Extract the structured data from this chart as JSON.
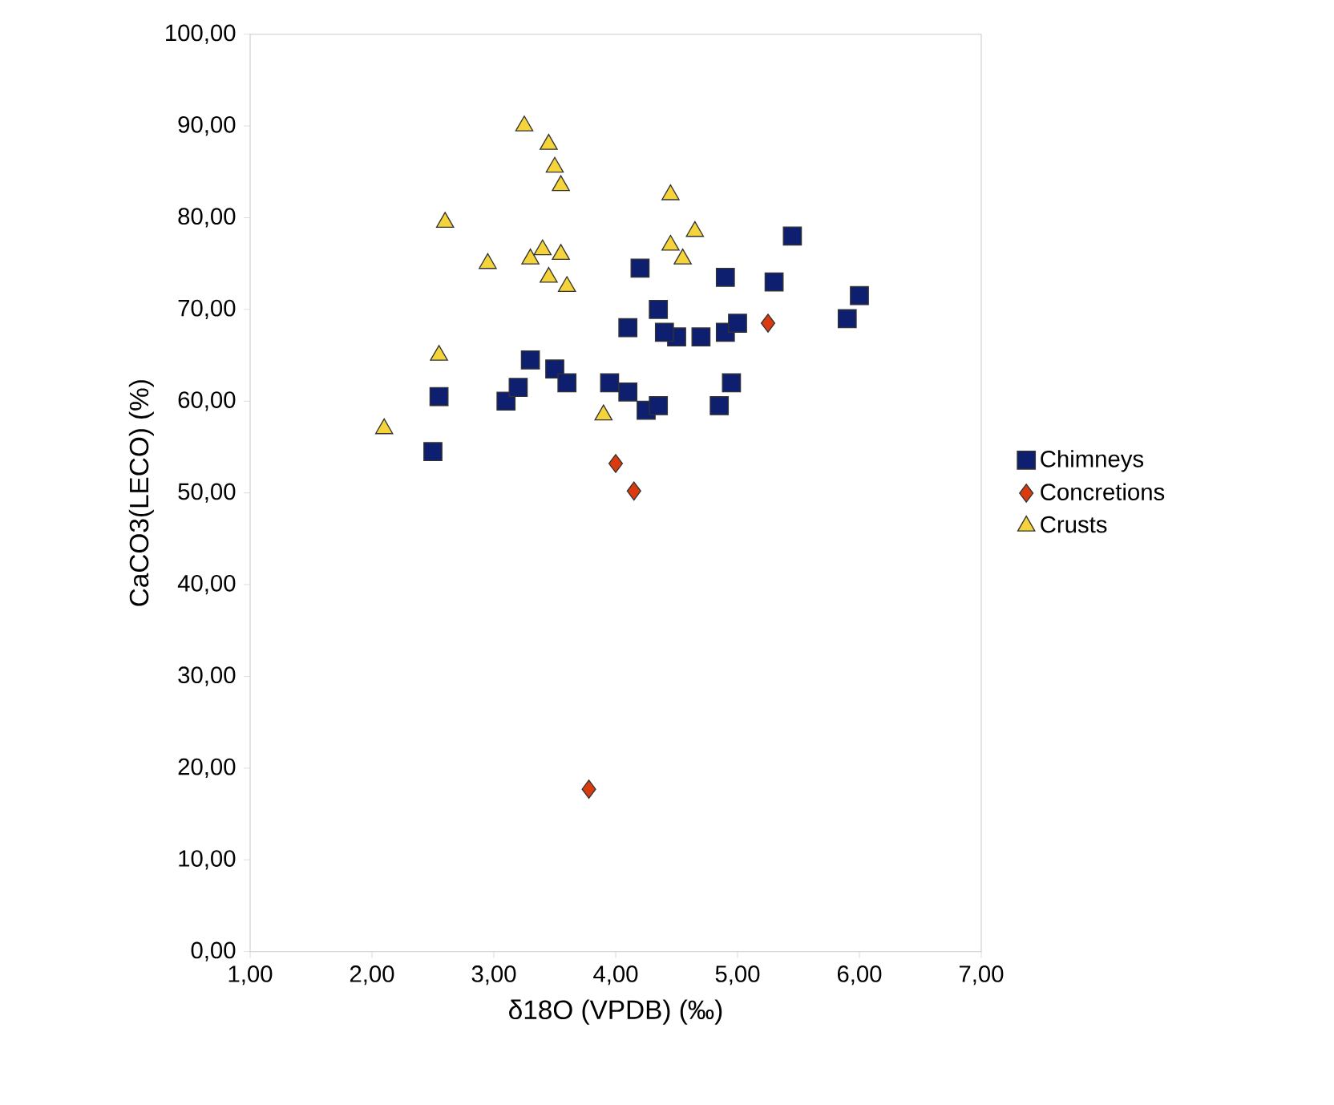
{
  "chart_data": {
    "type": "scatter",
    "xlabel": "δ18O (VPDB) (‰)",
    "ylabel": "CaCO3(LECO) (%)",
    "xlim": [
      1,
      7
    ],
    "ylim": [
      0,
      100
    ],
    "xticks": [
      {
        "value": 1,
        "label": "1,00"
      },
      {
        "value": 2,
        "label": "2,00"
      },
      {
        "value": 3,
        "label": "3,00"
      },
      {
        "value": 4,
        "label": "4,00"
      },
      {
        "value": 5,
        "label": "5,00"
      },
      {
        "value": 6,
        "label": "6,00"
      },
      {
        "value": 7,
        "label": "7,00"
      }
    ],
    "yticks": [
      {
        "value": 0,
        "label": "0,00"
      },
      {
        "value": 10,
        "label": "10,00"
      },
      {
        "value": 20,
        "label": "20,00"
      },
      {
        "value": 30,
        "label": "30,00"
      },
      {
        "value": 40,
        "label": "40,00"
      },
      {
        "value": 50,
        "label": "50,00"
      },
      {
        "value": 60,
        "label": "60,00"
      },
      {
        "value": 70,
        "label": "70,00"
      },
      {
        "value": 80,
        "label": "80,00"
      },
      {
        "value": 90,
        "label": "90,00"
      },
      {
        "value": 100,
        "label": "100,00"
      }
    ],
    "grid": false,
    "legend": "right",
    "series": [
      {
        "name": "Chimneys",
        "color": "#0d1f6e",
        "marker": "square",
        "x": [
          2.5,
          2.55,
          3.1,
          3.2,
          3.3,
          3.5,
          3.6,
          3.95,
          4.1,
          4.25,
          4.35,
          4.1,
          4.2,
          4.35,
          4.5,
          4.7,
          4.9,
          4.9,
          5.0,
          4.95,
          4.85,
          5.3,
          5.45,
          5.9,
          6.0,
          4.4
        ],
        "values": [
          54.5,
          60.5,
          60,
          61.5,
          64.5,
          63.5,
          62,
          62,
          61,
          59,
          59.5,
          68,
          74.5,
          70,
          67,
          67,
          67.5,
          73.5,
          68.5,
          62,
          59.5,
          73,
          78,
          69,
          71.5,
          67.5
        ]
      },
      {
        "name": "Concretions",
        "color": "#d93a10",
        "marker": "diamond",
        "x": [
          3.78,
          4.0,
          4.15,
          5.25
        ],
        "values": [
          17.7,
          53.2,
          50.2,
          68.5
        ]
      },
      {
        "name": "Crusts",
        "color": "#f5d33a",
        "marker": "triangle",
        "x": [
          2.1,
          2.55,
          2.6,
          2.95,
          3.25,
          3.45,
          3.5,
          3.55,
          3.3,
          3.45,
          3.55,
          3.6,
          3.9,
          4.45,
          4.45,
          4.55,
          4.65,
          3.4
        ],
        "values": [
          57,
          65,
          79.5,
          75,
          90,
          88,
          85.5,
          83.5,
          75.5,
          73.5,
          76,
          72.5,
          58.5,
          82.5,
          77,
          75.5,
          78.5,
          76.5
        ]
      }
    ]
  }
}
